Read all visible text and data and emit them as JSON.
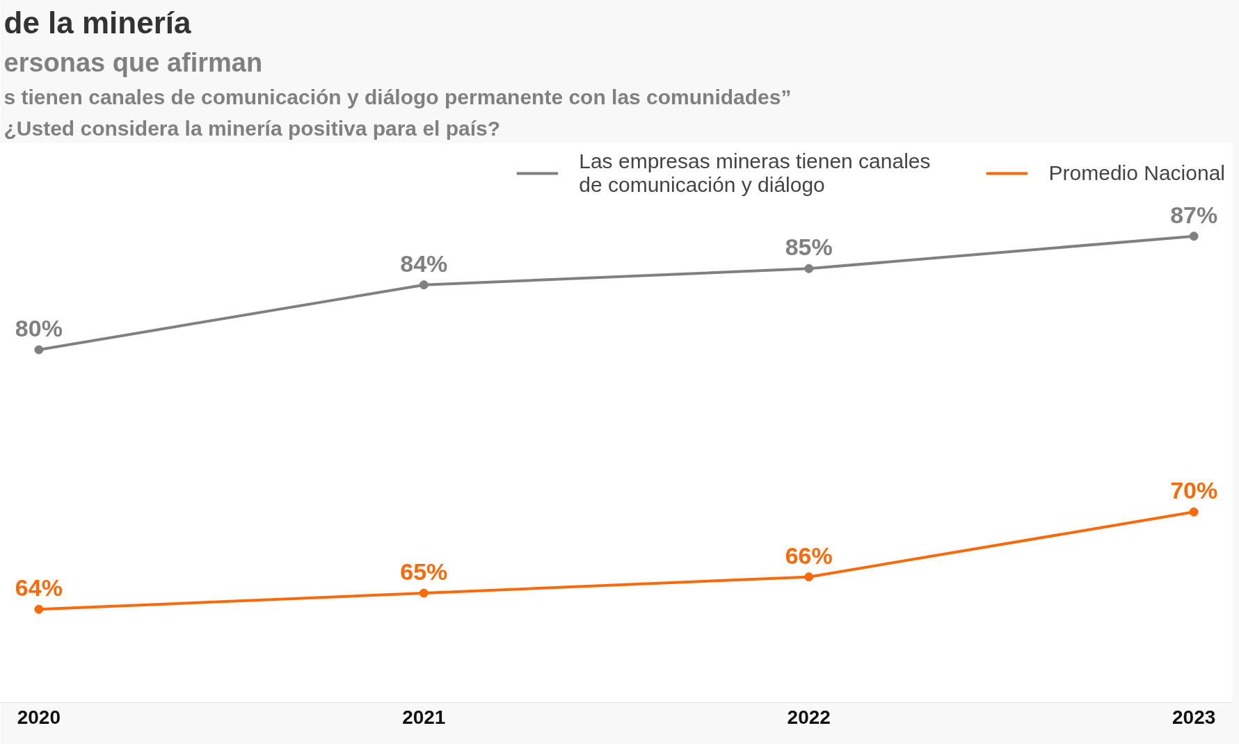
{
  "chart_data": {
    "type": "line",
    "title": "de la minería",
    "subtitle": "ersonas que afirman",
    "annotations": [
      "s tienen canales de comunicación y diálogo permanente con las comunidades”",
      "¿Usted considera la minería positiva para el país?"
    ],
    "categories": [
      "2020",
      "2021",
      "2022",
      "2023"
    ],
    "series": [
      {
        "name": "Las empresas mineras tienen canales de comunicación y diálogo",
        "color": "#808080",
        "values": [
          80,
          84,
          85,
          87
        ],
        "value_labels": [
          "80%",
          "84%",
          "85%",
          "87%"
        ]
      },
      {
        "name": "Promedio Nacional",
        "color": "#fa6a0a",
        "values": [
          64,
          65,
          66,
          70
        ],
        "value_labels": [
          "64%",
          "65%",
          "66%",
          "70%"
        ]
      }
    ],
    "tick_labels": "x",
    "grid": false,
    "legend": "top right",
    "marker": "circle",
    "line_style": "solid"
  }
}
